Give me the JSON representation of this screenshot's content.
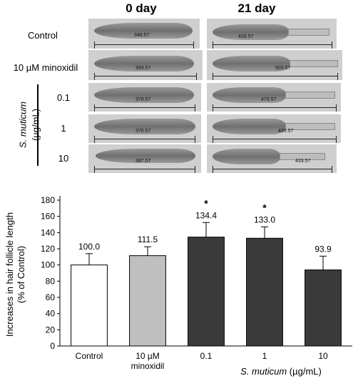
{
  "micrographs": {
    "columns": [
      "0 day",
      "21 day"
    ],
    "rows": [
      {
        "label": "Control",
        "day0": "346.57",
        "day21": "428.57"
      },
      {
        "label": "10 µM minoxidil",
        "day0": "393.57",
        "day21": "503.57"
      },
      {
        "label": "0.1",
        "day0": "378.57",
        "day21": "479.57"
      },
      {
        "label": "1",
        "day0": "376.57",
        "day21": "495.57"
      },
      {
        "label": "10",
        "day0": "387.57",
        "day21": "433.57"
      }
    ],
    "group_label_italic": "S. muticum",
    "group_label_unit": "(µg/mL)"
  },
  "chart_data": {
    "type": "bar",
    "categories": [
      "Control",
      "10 µM minoxidil",
      "0.1",
      "1",
      "10"
    ],
    "category_label_lines": [
      [
        "Control"
      ],
      [
        "10 µM",
        "minoxidil"
      ],
      [
        "0.1"
      ],
      [
        "1"
      ],
      [
        "10"
      ]
    ],
    "values": [
      100.0,
      111.5,
      134.4,
      133.0,
      93.9
    ],
    "value_labels": [
      "100.0",
      "111.5",
      "134.4",
      "133.0",
      "93.9"
    ],
    "errors": [
      14,
      11,
      18,
      14,
      17
    ],
    "significance": [
      "",
      "",
      "*",
      "*",
      ""
    ],
    "bar_colors": [
      "#ffffff",
      "#bfbfbf",
      "#3a3a3a",
      "#3a3a3a",
      "#3a3a3a"
    ],
    "ylabel_line1": "Increases in hair follicle length",
    "ylabel_line2": "(% of Control)",
    "yticks": [
      0,
      20,
      40,
      60,
      80,
      100,
      120,
      140,
      160,
      180
    ],
    "ylim": [
      0,
      180
    ],
    "xgroup_italic": "S. muticum",
    "xgroup_unit": " (µg/mL)"
  }
}
